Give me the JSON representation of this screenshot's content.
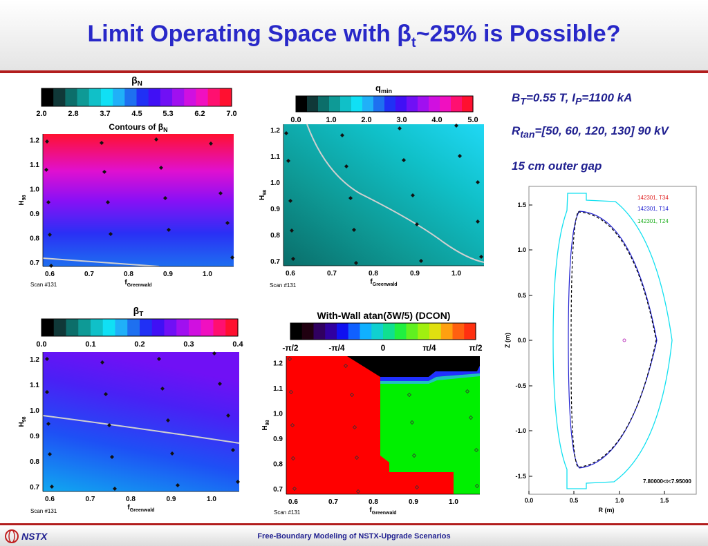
{
  "header": {
    "title_pre": "Limit Operating Space with ",
    "title_beta": "β",
    "title_sub": "t",
    "title_post": "~25% is Possible?"
  },
  "params": {
    "bt_label": "B",
    "bt_sub": "T",
    "bt_mid": "=0.55 T, I",
    "ip_sub": "P",
    "ip_value": "=1100 kA",
    "rtan_label": "R",
    "rtan_sub": "tan",
    "rtan_value": "=[50, 60, 120, 130] 90 kV",
    "gap": "15 cm outer gap"
  },
  "footer": {
    "text": "Free-Boundary Modeling of NSTX-Upgrade Scenarios",
    "logo": "NSTX",
    "logo_icon": "nstx-logo-icon"
  },
  "colorbars": {
    "betaN": {
      "title": "β",
      "title_sub": "N",
      "ticks": [
        "2.0",
        "2.8",
        "3.7",
        "4.5",
        "5.3",
        "6.2",
        "7.0"
      ]
    },
    "qmin": {
      "title": "q",
      "title_sub": "min",
      "ticks": [
        "0.0",
        "1.0",
        "2.0",
        "3.0",
        "4.0",
        "5.0"
      ]
    },
    "betaT": {
      "title": "β",
      "title_sub": "T",
      "ticks": [
        "0.0",
        "0.1",
        "0.2",
        "0.3",
        "0.4"
      ]
    },
    "wall": {
      "title": "With-Wall atan(δW/5) (DCON)",
      "ticks": [
        "-π/2",
        "-π/4",
        "0",
        "π/4",
        "π/2"
      ]
    }
  },
  "contour_plots": {
    "betaN": {
      "subtitle": "Contours of β",
      "subtitle_sub": "N",
      "scan": "Scan #131"
    },
    "qmin": {
      "scan": "Scan #131"
    },
    "betaT": {
      "scan": "Scan #131"
    },
    "wall": {
      "scan": "Scan #131"
    },
    "x_label": "f",
    "x_label_sub": "Greenwald",
    "y_label": "H",
    "y_label_sub": "98",
    "x_ticks": [
      "0.6",
      "0.7",
      "0.8",
      "0.9",
      "1.0"
    ],
    "y_ticks": [
      "0.7",
      "0.8",
      "0.9",
      "1.0",
      "1.1",
      "1.2"
    ]
  },
  "boundary_plot": {
    "legend": [
      {
        "label": "142301, T34",
        "color": "#e02020"
      },
      {
        "label": "142301, T14",
        "color": "#2020d0"
      },
      {
        "label": "142301, T24",
        "color": "#20b020"
      }
    ],
    "time_range": "7.80000<t<7.95000",
    "x_label": "R (m)",
    "y_label": "Z (m)",
    "x_ticks": [
      "0.0",
      "0.5",
      "1.0",
      "1.5"
    ],
    "y_ticks": [
      "1.5",
      "1.0",
      "0.5",
      "0.0",
      "-0.5",
      "-1.0",
      "-1.5"
    ]
  }
}
